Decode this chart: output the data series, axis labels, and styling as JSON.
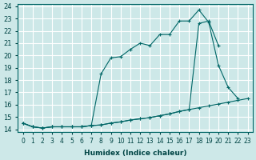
{
  "xlabel": "Humidex (Indice chaleur)",
  "bg_color": "#cde8e8",
  "grid_color": "#ffffff",
  "line_color": "#006666",
  "xlim": [
    -0.5,
    23.5
  ],
  "ylim": [
    13.8,
    24.2
  ],
  "xticks": [
    0,
    1,
    2,
    3,
    4,
    5,
    6,
    7,
    8,
    9,
    10,
    11,
    12,
    13,
    14,
    15,
    16,
    17,
    18,
    19,
    20,
    21,
    22,
    23
  ],
  "yticks": [
    14,
    15,
    16,
    17,
    18,
    19,
    20,
    21,
    22,
    23,
    24
  ],
  "line1_x": [
    0,
    1,
    2,
    3,
    4,
    5,
    6,
    7,
    8,
    9,
    10,
    11,
    12,
    13,
    14,
    15,
    16,
    17,
    18,
    19,
    20,
    21,
    22,
    23
  ],
  "line1_y": [
    14.5,
    14.2,
    14.1,
    14.2,
    14.2,
    14.2,
    14.2,
    14.3,
    14.35,
    14.5,
    14.6,
    14.75,
    14.85,
    14.95,
    15.1,
    15.25,
    15.45,
    15.6,
    15.75,
    15.9,
    16.05,
    16.2,
    16.35,
    16.5
  ],
  "line2_x": [
    0,
    1,
    2,
    3,
    4,
    5,
    6,
    7,
    8,
    9,
    10,
    11,
    12,
    13,
    14,
    15,
    16,
    17,
    18,
    19,
    20,
    21,
    22,
    23
  ],
  "line2_y": [
    14.5,
    14.2,
    14.1,
    14.2,
    14.2,
    14.2,
    14.2,
    14.3,
    18.5,
    19.8,
    19.9,
    20.5,
    21.0,
    20.8,
    21.7,
    21.7,
    22.8,
    22.8,
    23.7,
    22.7,
    19.2,
    17.4,
    16.5,
    null
  ],
  "line3_x": [
    0,
    1,
    2,
    3,
    4,
    5,
    6,
    7,
    8,
    9,
    10,
    11,
    12,
    13,
    14,
    15,
    16,
    17,
    18,
    19,
    20,
    21,
    22,
    23
  ],
  "line3_y": [
    14.5,
    14.2,
    14.1,
    14.2,
    14.2,
    14.2,
    14.2,
    14.3,
    14.35,
    14.5,
    14.6,
    14.75,
    14.85,
    14.95,
    15.1,
    15.25,
    15.45,
    15.6,
    22.6,
    22.8,
    20.8,
    null,
    null,
    null
  ]
}
